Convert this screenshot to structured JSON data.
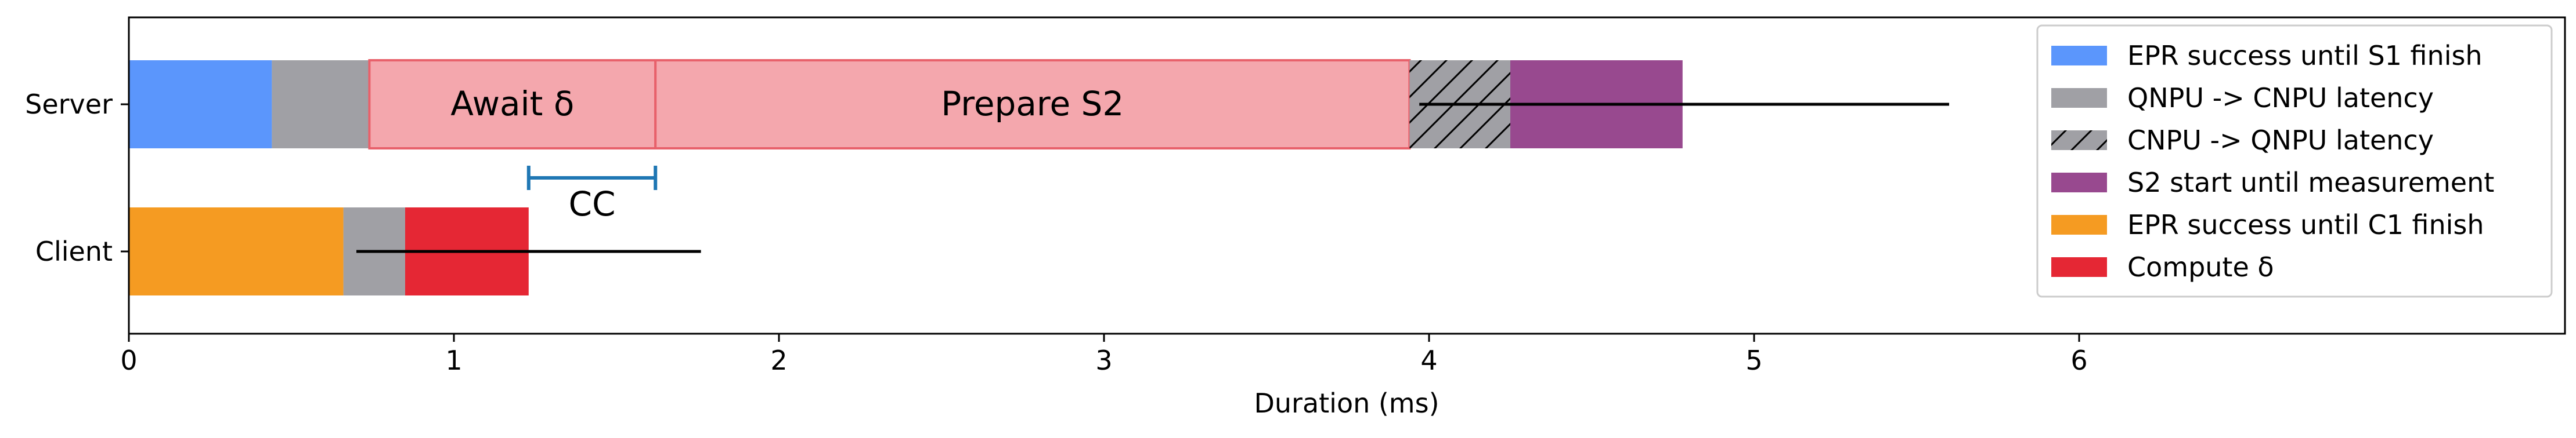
{
  "chart_data": {
    "type": "bar",
    "orientation": "horizontal-stacked",
    "xlabel": "Duration (ms)",
    "xlim": [
      0,
      7.5
    ],
    "xticks": [
      "0",
      "1",
      "2",
      "3",
      "4",
      "5",
      "6"
    ],
    "categories": [
      "Server",
      "Client"
    ],
    "grid": false,
    "legend_position": "upper-right",
    "series": [
      {
        "name": "EPR success until S1 finish",
        "color": "#5b96fc",
        "hatch": false
      },
      {
        "name": "QNPU -> CNPU latency",
        "color": "#a0a0a5",
        "hatch": false
      },
      {
        "name": "CNPU -> QNPU latency",
        "color": "#a0a0a5",
        "hatch": true
      },
      {
        "name": "S2 start until measurement",
        "color": "#98498f",
        "hatch": false
      },
      {
        "name": "EPR success until C1 finish",
        "color": "#f59b22",
        "hatch": false
      },
      {
        "name": "Compute δ",
        "color": "#e52734",
        "hatch": false
      }
    ],
    "segments": [
      {
        "row": "Server",
        "start": 0.0,
        "end": 0.44,
        "color": "#5b96fc",
        "label": ""
      },
      {
        "row": "Server",
        "start": 0.44,
        "end": 0.74,
        "color": "#a0a0a5",
        "label": ""
      },
      {
        "row": "Server",
        "start": 0.74,
        "end": 1.62,
        "color": "#f4a7ad",
        "label": "Await δ"
      },
      {
        "row": "Server",
        "start": 1.62,
        "end": 3.94,
        "color": "#f4a7ad",
        "label": "Prepare S2"
      },
      {
        "row": "Server",
        "start": 3.94,
        "end": 4.25,
        "color": "#a0a0a5",
        "hatch": true,
        "label": ""
      },
      {
        "row": "Server",
        "start": 4.25,
        "end": 4.78,
        "color": "#98498f",
        "label": ""
      },
      {
        "row": "Client",
        "start": 0.0,
        "end": 0.66,
        "color": "#f59b22",
        "label": ""
      },
      {
        "row": "Client",
        "start": 0.66,
        "end": 0.85,
        "color": "#a0a0a5",
        "label": ""
      },
      {
        "row": "Client",
        "start": 0.85,
        "end": 1.23,
        "color": "#e52734",
        "label": ""
      }
    ],
    "error_lines": [
      {
        "row": "Server",
        "start": 3.97,
        "end": 5.6
      },
      {
        "row": "Client",
        "start": 0.7,
        "end": 1.76
      }
    ],
    "annotation": {
      "label": "CC",
      "start": 1.23,
      "end": 1.62,
      "color": "#1f77b4"
    }
  }
}
